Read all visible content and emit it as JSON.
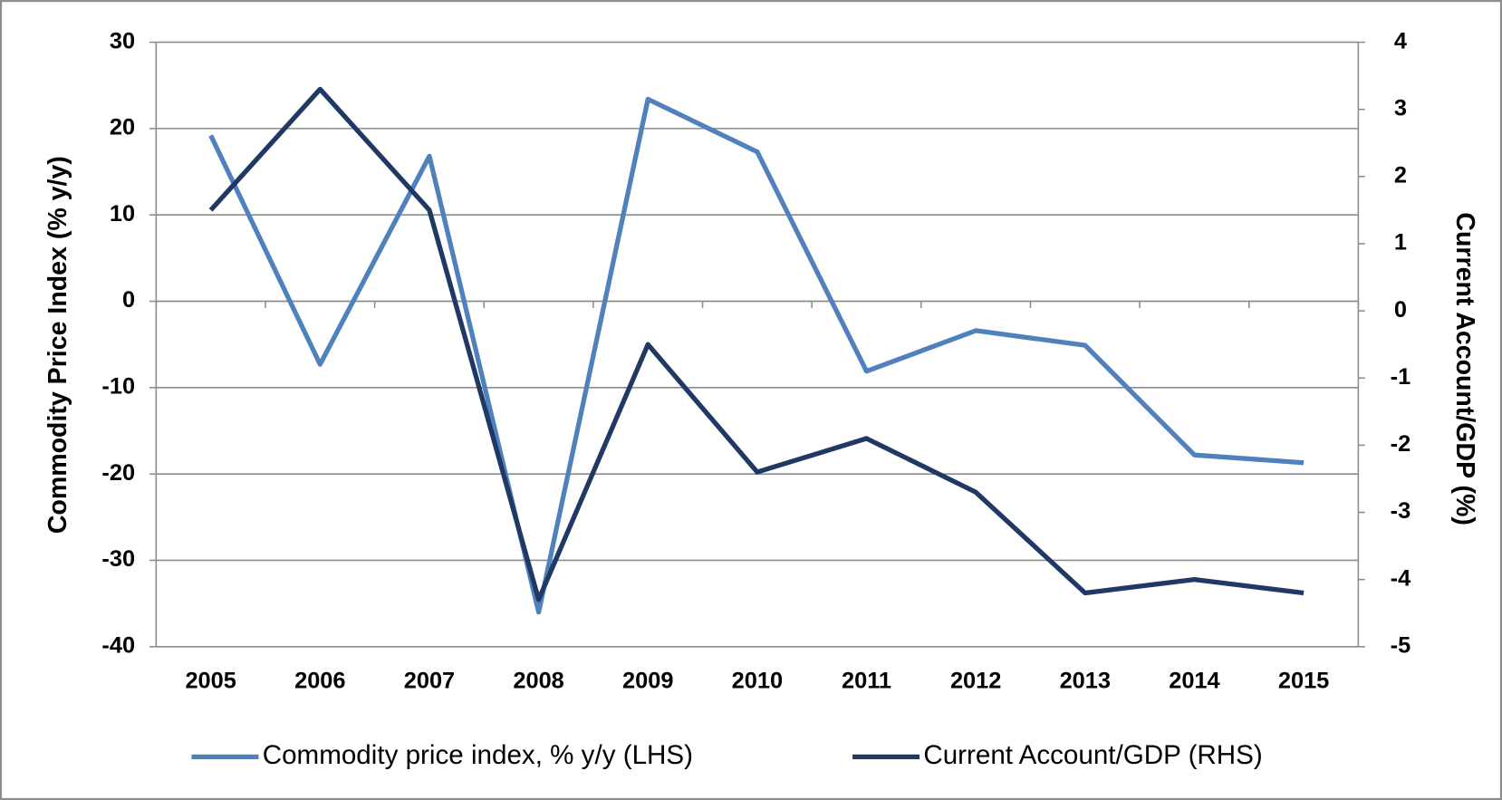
{
  "chart_data": {
    "type": "line",
    "categories": [
      "2005",
      "2006",
      "2007",
      "2008",
      "2009",
      "2010",
      "2011",
      "2012",
      "2013",
      "2014",
      "2015"
    ],
    "series": [
      {
        "name": "Commodity price index, % y/y (LHS)",
        "color": "#4f81bd",
        "values": [
          19.2,
          -7.3,
          16.8,
          -36,
          23.4,
          17.3,
          -8.1,
          -3.4,
          -5.1,
          -17.8,
          -18.7
        ]
      },
      {
        "name": "Current Account/GDP (RHS)",
        "color": "#1f3864",
        "axis": "y2",
        "values": [
          1.5,
          3.3,
          1.5,
          -4.3,
          -0.5,
          -2.4,
          -1.9,
          -2.7,
          -4.2,
          -4.0,
          -4.2
        ]
      }
    ],
    "ylabel": "Commodity Price Index (% y/y)",
    "y2label": "Current Account/GDP  (%)",
    "ylim": [
      -40,
      30
    ],
    "yticks": [
      -40,
      -30,
      -20,
      -10,
      0,
      10,
      20,
      30
    ],
    "y2lim": [
      -5,
      4
    ],
    "y2ticks": [
      -5,
      -4,
      -3,
      -2,
      -1,
      0,
      1,
      2,
      3,
      4
    ],
    "grid": true,
    "legend": "bottom"
  }
}
